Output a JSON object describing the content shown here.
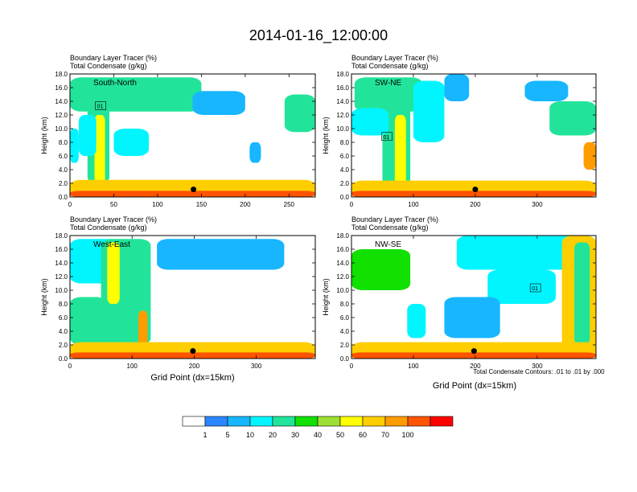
{
  "figure": {
    "title": "2014-01-16_12:00:00",
    "footnote": "Total Condensate Contours: .01 to .01 by .000",
    "xlabel": "Grid Point (dx=15km)"
  },
  "colorbar": {
    "colors": [
      "#ffffff",
      "#2b86ff",
      "#17b6ff",
      "#00f5ff",
      "#21e49a",
      "#11e000",
      "#9de033",
      "#ffff00",
      "#ffce00",
      "#ff9c00",
      "#ff5400",
      "#ff0000"
    ],
    "labels": [
      "1",
      "5",
      "10",
      "20",
      "30",
      "40",
      "50",
      "60",
      "70",
      "100"
    ]
  },
  "chart_data": [
    {
      "type": "heatmap",
      "panel": "South-North",
      "title_line1": "Boundary Layer Tracer   (%)",
      "title_line2": "Total Condensate   (g/kg)",
      "label": "South-North",
      "ylabel": "Height (km)",
      "xlim": [
        0,
        280
      ],
      "ylim": [
        0,
        18
      ],
      "xticks": [
        0,
        50,
        100,
        150,
        200,
        250
      ],
      "xticklabels": [
        "0",
        "50",
        "100",
        "150",
        "200",
        "250"
      ],
      "yticks": [
        0,
        2,
        4,
        6,
        8,
        10,
        12,
        14,
        16,
        18
      ],
      "yticklabels": [
        "0.0",
        "2.0",
        "4.0",
        "6.0",
        "8.0",
        "10.0",
        "12.0",
        "14.0",
        "16.0",
        "18.0"
      ],
      "contour_label": "01",
      "marker": {
        "x": 141,
        "y": 1.1
      },
      "blobs": [
        {
          "x": [
            0,
            150
          ],
          "y": [
            12.5,
            17.5
          ],
          "value": 20
        },
        {
          "x": [
            20,
            45
          ],
          "y": [
            2,
            17
          ],
          "value": 20
        },
        {
          "x": [
            28,
            40
          ],
          "y": [
            0,
            12
          ],
          "value": 50
        },
        {
          "x": [
            10,
            30
          ],
          "y": [
            6,
            12
          ],
          "value": 10
        },
        {
          "x": [
            0,
            10
          ],
          "y": [
            5,
            10
          ],
          "value": 10
        },
        {
          "x": [
            50,
            90
          ],
          "y": [
            6,
            10
          ],
          "value": 10
        },
        {
          "x": [
            140,
            200
          ],
          "y": [
            12,
            15.5
          ],
          "value": 5
        },
        {
          "x": [
            245,
            280
          ],
          "y": [
            9.5,
            15
          ],
          "value": 20
        },
        {
          "x": [
            205,
            218
          ],
          "y": [
            5,
            8
          ],
          "value": 5
        },
        {
          "x": [
            0,
            280
          ],
          "y": [
            0,
            2.5
          ],
          "value": 60
        },
        {
          "x": [
            0,
            280
          ],
          "y": [
            0,
            0.9
          ],
          "value": 100
        }
      ]
    },
    {
      "type": "heatmap",
      "panel": "SW-NE",
      "title_line1": "Boundary Layer Tracer   (%)",
      "title_line2": "Total Condensate   (g/kg)",
      "label": "SW-NE",
      "ylabel": "Height (km)",
      "xlim": [
        0,
        395
      ],
      "ylim": [
        0,
        18
      ],
      "xticks": [
        0,
        100,
        200,
        300
      ],
      "xticklabels": [
        "0",
        "100",
        "200",
        "300"
      ],
      "yticks": [
        0,
        2,
        4,
        6,
        8,
        10,
        12,
        14,
        16,
        18
      ],
      "yticklabels": [
        "0.0",
        "2.0",
        "4.0",
        "6.0",
        "8.0",
        "10.0",
        "12.0",
        "14.0",
        "16.0",
        "18.0"
      ],
      "contour_label": "01",
      "marker": {
        "x": 200,
        "y": 1.1
      },
      "blobs": [
        {
          "x": [
            5,
            115
          ],
          "y": [
            12.5,
            17.5
          ],
          "value": 20
        },
        {
          "x": [
            50,
            95
          ],
          "y": [
            1,
            17
          ],
          "value": 20
        },
        {
          "x": [
            70,
            88
          ],
          "y": [
            0,
            12
          ],
          "value": 50
        },
        {
          "x": [
            0,
            60
          ],
          "y": [
            9,
            13
          ],
          "value": 10
        },
        {
          "x": [
            100,
            150
          ],
          "y": [
            8,
            17
          ],
          "value": 10
        },
        {
          "x": [
            150,
            190
          ],
          "y": [
            14,
            18
          ],
          "value": 5
        },
        {
          "x": [
            280,
            350
          ],
          "y": [
            14,
            17
          ],
          "value": 5
        },
        {
          "x": [
            320,
            395
          ],
          "y": [
            9,
            14
          ],
          "value": 20
        },
        {
          "x": [
            375,
            395
          ],
          "y": [
            4,
            8
          ],
          "value": 70
        },
        {
          "x": [
            0,
            395
          ],
          "y": [
            0,
            2.4
          ],
          "value": 60
        },
        {
          "x": [
            0,
            395
          ],
          "y": [
            0,
            0.9
          ],
          "value": 100
        }
      ]
    },
    {
      "type": "heatmap",
      "panel": "West-East",
      "title_line1": "Boundary Layer Tracer   (%)",
      "title_line2": "Total Condensate   (g/kg)",
      "label": "West-East",
      "ylabel": "Height (km)",
      "xlim": [
        0,
        395
      ],
      "ylim": [
        0,
        18
      ],
      "xticks": [
        0,
        100,
        200,
        300
      ],
      "xticklabels": [
        "0",
        "100",
        "200",
        "300"
      ],
      "yticks": [
        0,
        2,
        4,
        6,
        8,
        10,
        12,
        14,
        16,
        18
      ],
      "yticklabels": [
        "0.0",
        "2.0",
        "4.0",
        "6.0",
        "8.0",
        "10.0",
        "12.0",
        "14.0",
        "16.0",
        "18.0"
      ],
      "contour_label": "",
      "marker": {
        "x": 198,
        "y": 1.1
      },
      "blobs": [
        {
          "x": [
            0,
            85
          ],
          "y": [
            11,
            17.5
          ],
          "value": 10
        },
        {
          "x": [
            50,
            130
          ],
          "y": [
            2,
            17.5
          ],
          "value": 20
        },
        {
          "x": [
            60,
            80
          ],
          "y": [
            8,
            17
          ],
          "value": 50
        },
        {
          "x": [
            110,
            125
          ],
          "y": [
            0,
            7
          ],
          "value": 70
        },
        {
          "x": [
            140,
            345
          ],
          "y": [
            13,
            17.5
          ],
          "value": 5
        },
        {
          "x": [
            0,
            60
          ],
          "y": [
            2,
            9
          ],
          "value": 20
        },
        {
          "x": [
            0,
            395
          ],
          "y": [
            0,
            2.4
          ],
          "value": 60
        },
        {
          "x": [
            0,
            395
          ],
          "y": [
            0,
            0.9
          ],
          "value": 100
        }
      ]
    },
    {
      "type": "heatmap",
      "panel": "NW-SE",
      "title_line1": "Boundary Layer Tracer   (%)",
      "title_line2": "Total Condensate   (g/kg)",
      "label": "NW-SE",
      "ylabel": "Height (km)",
      "xlim": [
        0,
        395
      ],
      "ylim": [
        0,
        18
      ],
      "xticks": [
        0,
        100,
        200,
        300
      ],
      "xticklabels": [
        "0",
        "100",
        "200",
        "300"
      ],
      "yticks": [
        0,
        2,
        4,
        6,
        8,
        10,
        12,
        14,
        16,
        18
      ],
      "yticklabels": [
        "0.0",
        "2.0",
        "4.0",
        "6.0",
        "8.0",
        "10.0",
        "12.0",
        "14.0",
        "16.0",
        "18.0"
      ],
      "contour_label": "01",
      "marker": {
        "x": 198,
        "y": 1.1
      },
      "blobs": [
        {
          "x": [
            0,
            95
          ],
          "y": [
            10,
            16
          ],
          "value": 30
        },
        {
          "x": [
            90,
            120
          ],
          "y": [
            3,
            8
          ],
          "value": 10
        },
        {
          "x": [
            170,
            395
          ],
          "y": [
            13,
            18
          ],
          "value": 10
        },
        {
          "x": [
            220,
            330
          ],
          "y": [
            8,
            13
          ],
          "value": 10
        },
        {
          "x": [
            340,
            395
          ],
          "y": [
            1,
            18
          ],
          "value": 60
        },
        {
          "x": [
            360,
            385
          ],
          "y": [
            2,
            17
          ],
          "value": 20
        },
        {
          "x": [
            150,
            240
          ],
          "y": [
            3,
            9
          ],
          "value": 5
        },
        {
          "x": [
            0,
            395
          ],
          "y": [
            0,
            2.4
          ],
          "value": 60
        },
        {
          "x": [
            0,
            395
          ],
          "y": [
            0,
            0.9
          ],
          "value": 100
        }
      ]
    }
  ]
}
